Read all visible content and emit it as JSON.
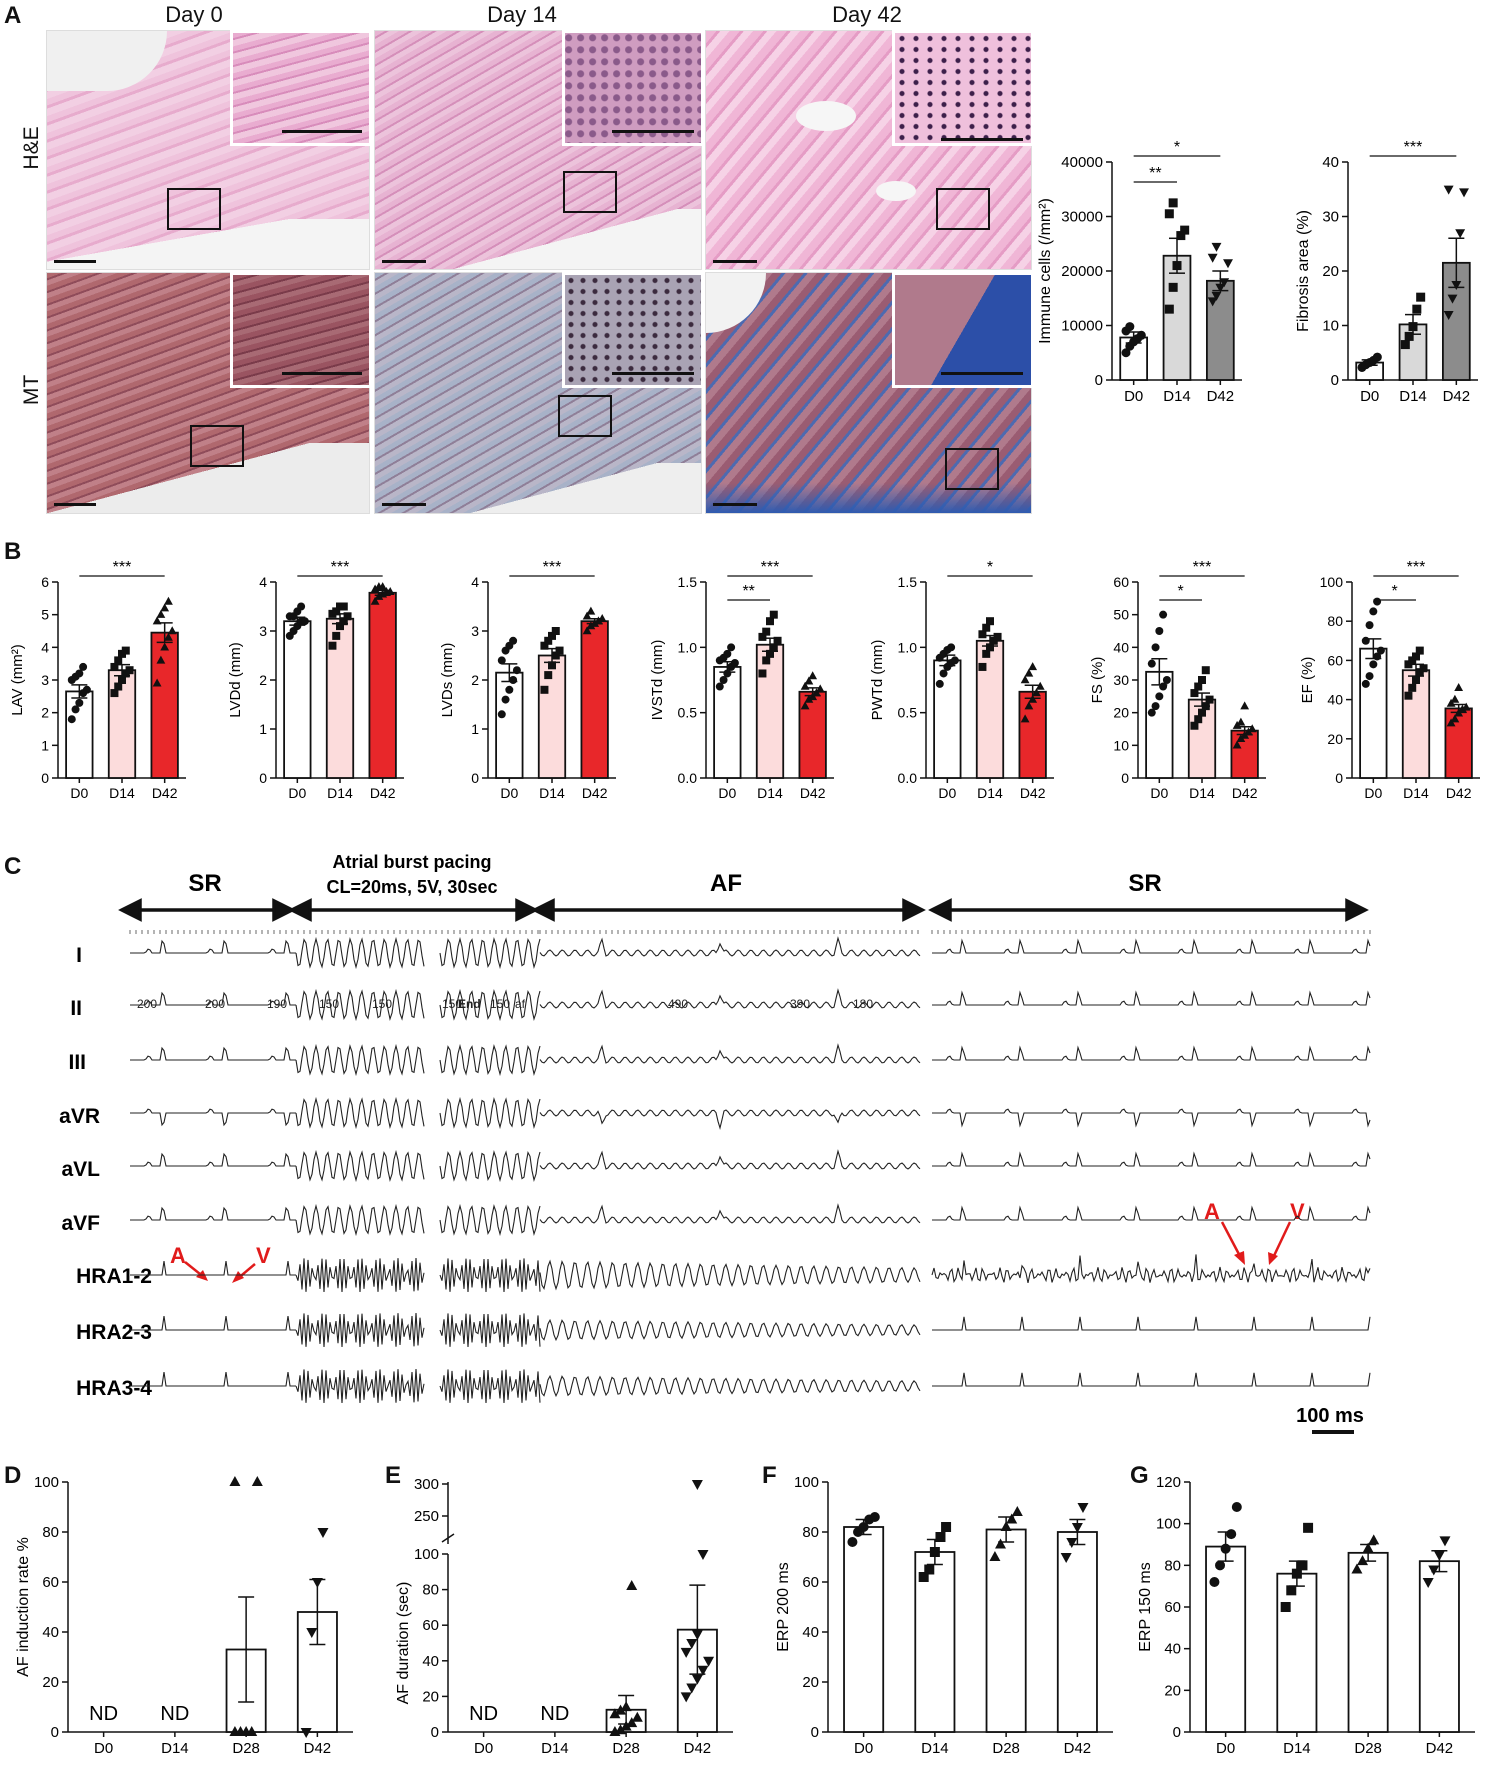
{
  "panels": {
    "A": "A",
    "B": "B",
    "C": "C",
    "D": "D",
    "E": "E",
    "F": "F",
    "G": "G"
  },
  "panelA": {
    "columns": [
      "Day 0",
      "Day 14",
      "Day 42"
    ],
    "rows": [
      "H&E",
      "MT"
    ],
    "colors": {
      "he": "#e6a3c8",
      "he_dark": "#c678a8",
      "mt_red": "#a8585e",
      "mt_blue": "#2c5aa8",
      "mt_light": "#c8c8d6"
    }
  },
  "panelC": {
    "segments": [
      "SR",
      "Atrial burst pacing",
      "CL=20ms, 5V, 30sec",
      "AF",
      "SR"
    ],
    "leads": [
      "I",
      "II",
      "III",
      "aVR",
      "aVL",
      "aVF",
      "HRA1-2",
      "HRA2-3",
      "HRA3-4"
    ],
    "intervals": [
      "200",
      "200",
      "190",
      "150",
      "150",
      "150",
      "End",
      "150",
      "af",
      "490",
      "390",
      "180"
    ],
    "markers": {
      "A": "A",
      "V": "V"
    },
    "scalebar": "100 ms",
    "marker_color": "#e11b1b"
  },
  "chart_data": [
    {
      "id": "A-immune",
      "type": "bar",
      "title": "",
      "categories": [
        "D0",
        "D14",
        "D42"
      ],
      "values": [
        7800,
        22800,
        18200
      ],
      "errors": [
        1000,
        3200,
        1800
      ],
      "ylabel": "Immune cells (/mm²)",
      "ylim": [
        0,
        40000
      ],
      "yticks": [
        "0",
        "10000",
        "20000",
        "30000",
        "40000"
      ],
      "fills": [
        "#ffffff",
        "#d9d9d9",
        "#8c8c8c"
      ],
      "points": [
        [
          5000,
          6200,
          7000,
          7600,
          8200,
          9000,
          9800
        ],
        [
          13000,
          17000,
          21000,
          26500,
          27500,
          30500,
          32500
        ],
        [
          14500,
          15500,
          17000,
          18000,
          21500,
          22500,
          24500
        ]
      ],
      "markers": [
        "circle",
        "square",
        "tri-down"
      ],
      "sig": [
        {
          "from": 0,
          "to": 1,
          "label": "**"
        },
        {
          "from": 0,
          "to": 2,
          "label": "*"
        }
      ]
    },
    {
      "id": "A-fibrosis",
      "type": "bar",
      "title": "",
      "categories": [
        "D0",
        "D14",
        "D42"
      ],
      "values": [
        3.2,
        10.2,
        21.5
      ],
      "errors": [
        0.5,
        1.8,
        4.5
      ],
      "ylabel": "Fibrosis area (%)",
      "ylim": [
        0,
        40
      ],
      "yticks": [
        "0",
        "10",
        "20",
        "30",
        "40"
      ],
      "fills": [
        "#ffffff",
        "#d9d9d9",
        "#8c8c8c"
      ],
      "points": [
        [
          2.3,
          2.8,
          3.2,
          3.6,
          4.2
        ],
        [
          6.5,
          8,
          9.8,
          13,
          15.2
        ],
        [
          12,
          15,
          17.5,
          27,
          34.5,
          35
        ]
      ],
      "markers": [
        "circle",
        "square",
        "tri-down"
      ],
      "sig": [
        {
          "from": 0,
          "to": 2,
          "label": "***"
        }
      ]
    },
    {
      "id": "B-LAV",
      "type": "bar",
      "categories": [
        "D0",
        "D14",
        "D42"
      ],
      "values": [
        2.65,
        3.3,
        4.45
      ],
      "errors": [
        0.2,
        0.17,
        0.3
      ],
      "ylabel": "LAV (mm²)",
      "ylim": [
        0,
        6
      ],
      "yticks": [
        "0",
        "1",
        "2",
        "3",
        "4",
        "5",
        "6"
      ],
      "fills": [
        "#ffffff",
        "#fcdcdc",
        "#e8272a"
      ],
      "points": [
        [
          1.8,
          2.1,
          2.3,
          2.6,
          2.7,
          3.0,
          3.1,
          3.2,
          3.4
        ],
        [
          2.6,
          2.8,
          3.0,
          3.2,
          3.3,
          3.4,
          3.6,
          3.8,
          3.9
        ],
        [
          2.9,
          3.6,
          4.0,
          4.3,
          4.5,
          4.8,
          5.0,
          5.2,
          5.4
        ]
      ],
      "markers": [
        "circle",
        "square",
        "tri-up"
      ],
      "sig": [
        {
          "from": 0,
          "to": 2,
          "label": "***"
        }
      ]
    },
    {
      "id": "B-LVDd",
      "type": "bar",
      "categories": [
        "D0",
        "D14",
        "D42"
      ],
      "values": [
        3.2,
        3.25,
        3.78
      ],
      "errors": [
        0.08,
        0.1,
        0.05
      ],
      "ylabel": "LVDd (mm)",
      "ylim": [
        0,
        4
      ],
      "yticks": [
        "0",
        "1",
        "2",
        "3",
        "4"
      ],
      "fills": [
        "#ffffff",
        "#fcdcdc",
        "#e8272a"
      ],
      "points": [
        [
          2.9,
          3.0,
          3.1,
          3.2,
          3.2,
          3.3,
          3.3,
          3.4,
          3.5
        ],
        [
          2.7,
          2.9,
          3.1,
          3.2,
          3.3,
          3.35,
          3.4,
          3.5,
          3.5
        ],
        [
          3.6,
          3.7,
          3.75,
          3.8,
          3.8,
          3.85,
          3.9,
          3.9
        ]
      ],
      "markers": [
        "circle",
        "square",
        "tri-up"
      ],
      "sig": [
        {
          "from": 0,
          "to": 2,
          "label": "***"
        }
      ]
    },
    {
      "id": "B-LVDs",
      "type": "bar",
      "categories": [
        "D0",
        "D14",
        "D42"
      ],
      "values": [
        2.15,
        2.5,
        3.2
      ],
      "errors": [
        0.18,
        0.14,
        0.05
      ],
      "ylabel": "LVDs (mm)",
      "ylim": [
        0,
        4
      ],
      "yticks": [
        "0",
        "1",
        "2",
        "3",
        "4"
      ],
      "fills": [
        "#ffffff",
        "#fcdcdc",
        "#e8272a"
      ],
      "points": [
        [
          1.3,
          1.6,
          1.8,
          2.0,
          2.2,
          2.4,
          2.6,
          2.7,
          2.8
        ],
        [
          1.8,
          2.1,
          2.3,
          2.5,
          2.6,
          2.7,
          2.8,
          2.9,
          3.0
        ],
        [
          3.0,
          3.1,
          3.15,
          3.2,
          3.25,
          3.3,
          3.4
        ]
      ],
      "markers": [
        "circle",
        "square",
        "tri-up"
      ],
      "sig": [
        {
          "from": 0,
          "to": 2,
          "label": "***"
        }
      ]
    },
    {
      "id": "B-IVSTd",
      "type": "bar",
      "categories": [
        "D0",
        "D14",
        "D42"
      ],
      "values": [
        0.85,
        1.02,
        0.66
      ],
      "errors": [
        0.04,
        0.05,
        0.03
      ],
      "ylabel": "IVSTd (mm)",
      "ylim": [
        0,
        1.5
      ],
      "yticks": [
        "0.0",
        "0.5",
        "1.0",
        "1.5"
      ],
      "fills": [
        "#ffffff",
        "#fcdcdc",
        "#e8272a"
      ],
      "points": [
        [
          0.7,
          0.75,
          0.8,
          0.85,
          0.88,
          0.9,
          0.92,
          0.95,
          1.0
        ],
        [
          0.8,
          0.9,
          0.95,
          1.0,
          1.05,
          1.08,
          1.12,
          1.2,
          1.25
        ],
        [
          0.55,
          0.6,
          0.62,
          0.65,
          0.68,
          0.7,
          0.74,
          0.78
        ]
      ],
      "markers": [
        "circle",
        "square",
        "tri-up"
      ],
      "sig": [
        {
          "from": 0,
          "to": 1,
          "label": "**"
        },
        {
          "from": 0,
          "to": 2,
          "label": "***"
        }
      ]
    },
    {
      "id": "B-PWTd",
      "type": "bar",
      "categories": [
        "D0",
        "D14",
        "D42"
      ],
      "values": [
        0.9,
        1.05,
        0.66
      ],
      "errors": [
        0.04,
        0.04,
        0.05
      ],
      "ylabel": "PWTd (mm)",
      "ylim": [
        0,
        1.5
      ],
      "yticks": [
        "0.0",
        "0.5",
        "1.0",
        "1.5"
      ],
      "fills": [
        "#ffffff",
        "#fcdcdc",
        "#e8272a"
      ],
      "points": [
        [
          0.72,
          0.8,
          0.85,
          0.88,
          0.9,
          0.92,
          0.95,
          0.98,
          1.0
        ],
        [
          0.85,
          0.95,
          1.0,
          1.05,
          1.08,
          1.1,
          1.15,
          1.2
        ],
        [
          0.45,
          0.55,
          0.6,
          0.65,
          0.7,
          0.75,
          0.8,
          0.85
        ]
      ],
      "markers": [
        "circle",
        "square",
        "tri-up"
      ],
      "sig": [
        {
          "from": 0,
          "to": 2,
          "label": "*"
        }
      ]
    },
    {
      "id": "B-FS",
      "type": "bar",
      "categories": [
        "D0",
        "D14",
        "D42"
      ],
      "values": [
        32.5,
        24,
        14.5
      ],
      "errors": [
        4,
        2,
        1.2
      ],
      "ylabel": "FS (%)",
      "ylim": [
        0,
        60
      ],
      "yticks": [
        "0",
        "10",
        "20",
        "30",
        "40",
        "50",
        "60"
      ],
      "fills": [
        "#ffffff",
        "#fcdcdc",
        "#e8272a"
      ],
      "points": [
        [
          20,
          22,
          25,
          28,
          30,
          35,
          40,
          45,
          50
        ],
        [
          16,
          18,
          20,
          22,
          24,
          26,
          28,
          30,
          33
        ],
        [
          10,
          12,
          13,
          14,
          15,
          16,
          17,
          22
        ]
      ],
      "markers": [
        "circle",
        "square",
        "tri-up"
      ],
      "sig": [
        {
          "from": 0,
          "to": 1,
          "label": "*"
        },
        {
          "from": 0,
          "to": 2,
          "label": "***"
        }
      ]
    },
    {
      "id": "B-EF",
      "type": "bar",
      "categories": [
        "D0",
        "D14",
        "D42"
      ],
      "values": [
        66,
        55,
        35.5
      ],
      "errors": [
        5,
        3,
        2
      ],
      "ylabel": "EF (%)",
      "ylim": [
        0,
        100
      ],
      "yticks": [
        "0",
        "20",
        "40",
        "60",
        "80",
        "100"
      ],
      "fills": [
        "#ffffff",
        "#fcdcdc",
        "#e8272a"
      ],
      "points": [
        [
          48,
          52,
          58,
          62,
          65,
          70,
          78,
          85,
          90
        ],
        [
          42,
          46,
          50,
          54,
          56,
          58,
          60,
          62,
          65
        ],
        [
          28,
          30,
          33,
          35,
          36,
          38,
          40,
          46
        ]
      ],
      "markers": [
        "circle",
        "square",
        "tri-up"
      ],
      "sig": [
        {
          "from": 0,
          "to": 1,
          "label": "*"
        },
        {
          "from": 0,
          "to": 2,
          "label": "***"
        }
      ]
    },
    {
      "id": "D",
      "type": "bar",
      "categories": [
        "D0",
        "D14",
        "D28",
        "D42"
      ],
      "values": [
        0,
        0,
        33,
        48
      ],
      "errors": [
        0,
        0,
        21,
        13
      ],
      "ylabel": "AF induction rate %",
      "ylim": [
        0,
        100
      ],
      "yticks": [
        "0",
        "20",
        "40",
        "60",
        "80",
        "100"
      ],
      "nd": [
        "ND",
        "ND"
      ],
      "points": [
        [],
        [],
        [
          0,
          0,
          0,
          0,
          100,
          100
        ],
        [
          0,
          40,
          60,
          80
        ]
      ],
      "markers": [
        "",
        "",
        "tri-up",
        "tri-down"
      ]
    },
    {
      "id": "E",
      "type": "bar",
      "categories": [
        "D0",
        "D14",
        "D28",
        "D42"
      ],
      "values": [
        0,
        0,
        12.5,
        57.5
      ],
      "errors": [
        0,
        0,
        8,
        25
      ],
      "ylabel": "AF duration (sec)",
      "ylim": [
        0,
        100
      ],
      "yticks": [
        "0",
        "20",
        "40",
        "60",
        "80",
        "100"
      ],
      "break_ticks": [
        "250",
        "300"
      ],
      "nd": [
        "ND",
        "ND"
      ],
      "points": [
        [],
        [],
        [
          0,
          1,
          3,
          5,
          8,
          10,
          12,
          14,
          82
        ],
        [
          20,
          25,
          30,
          35,
          40,
          45,
          50,
          55,
          300
        ]
      ],
      "markers": [
        "",
        "",
        "tri-up",
        "tri-down"
      ]
    },
    {
      "id": "F",
      "type": "bar",
      "categories": [
        "D0",
        "D14",
        "D28",
        "D42"
      ],
      "values": [
        82,
        72,
        81,
        80
      ],
      "errors": [
        3,
        5,
        5,
        5
      ],
      "ylabel": "ERP 200 ms",
      "ylim": [
        0,
        100
      ],
      "yticks": [
        "0",
        "20",
        "40",
        "60",
        "80",
        "100"
      ],
      "points": [
        [
          76,
          80,
          82,
          85,
          86
        ],
        [
          62,
          65,
          72,
          78,
          82
        ],
        [
          70,
          75,
          82,
          85,
          88
        ],
        [
          70,
          76,
          82,
          90
        ]
      ],
      "markers": [
        "circle",
        "square",
        "tri-up",
        "tri-down"
      ]
    },
    {
      "id": "G",
      "type": "bar",
      "categories": [
        "D0",
        "D14",
        "D28",
        "D42"
      ],
      "values": [
        89,
        76,
        86,
        82
      ],
      "errors": [
        7,
        6,
        4,
        5
      ],
      "ylabel": "ERP 150 ms",
      "ylim": [
        0,
        120
      ],
      "yticks": [
        "0",
        "20",
        "40",
        "60",
        "80",
        "100",
        "120"
      ],
      "points": [
        [
          72,
          80,
          88,
          95,
          108
        ],
        [
          60,
          68,
          76,
          80,
          98
        ],
        [
          78,
          82,
          88,
          92
        ],
        [
          72,
          78,
          85,
          92
        ]
      ],
      "markers": [
        "circle",
        "square",
        "tri-up",
        "tri-down"
      ]
    }
  ]
}
